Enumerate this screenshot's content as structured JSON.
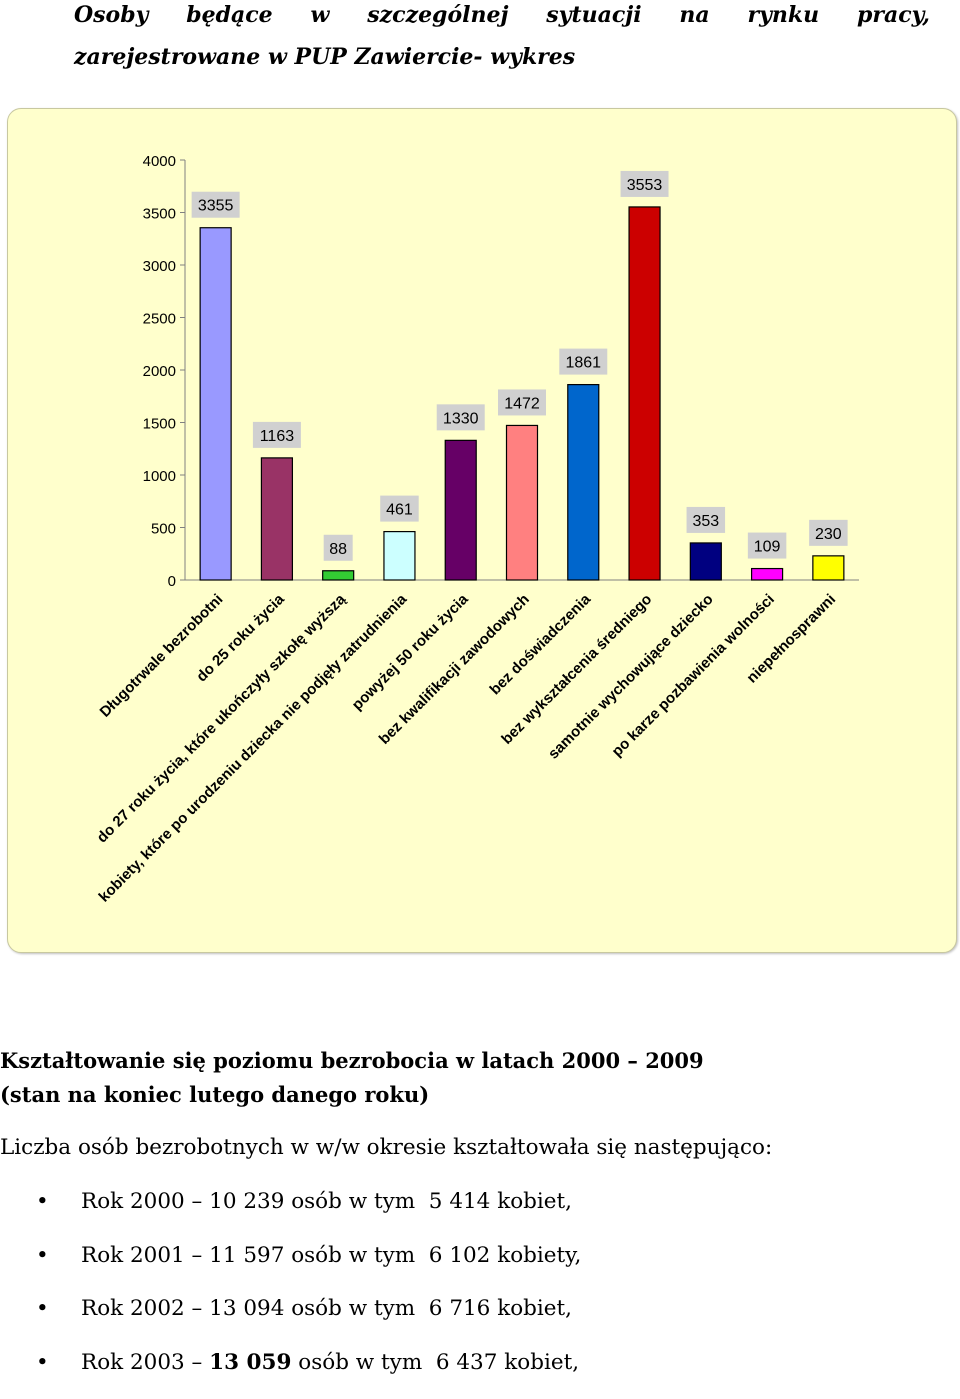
{
  "heading": {
    "line1_words": [
      "Osoby",
      "będące",
      "w",
      "szczególnej",
      "sytuacji",
      "na",
      "rynku",
      "pracy,"
    ],
    "line2": "zarejestrowane w PUP Zawiercie- wykres"
  },
  "chart_data": {
    "type": "bar",
    "categories": [
      "Długotrwale bezrobotni",
      "do 25 roku życia",
      "do 27 roku życia, które ukończyły szkołę wyższą",
      "kobiety, które po urodzeniu dziecka nie podjęły zatrudnienia",
      "powyżej 50 roku życia",
      "bez kwalifikacji zawodowych",
      "bez doświadczenia",
      "bez wykształcenia średniego",
      "samotnie wychowujące dziecko",
      "po karze pozbawienia wolności",
      "niepełnosprawni"
    ],
    "values": [
      3355,
      1163,
      88,
      461,
      1330,
      1472,
      1861,
      3553,
      353,
      109,
      230
    ],
    "value_labels": [
      "3355",
      "1163",
      "88",
      "461",
      "1330",
      "1472",
      "1861",
      "3553",
      "353",
      "109",
      "230"
    ],
    "colors": [
      "#9999FF",
      "#993366",
      "#33CC33",
      "#CCFFFF",
      "#660066",
      "#FF8080",
      "#0066CC",
      "#CC0000",
      "#000080",
      "#FF00FF",
      "#FFFF00"
    ],
    "yticks": [
      "0",
      "500",
      "1000",
      "1500",
      "2000",
      "2500",
      "3000",
      "3500",
      "4000"
    ],
    "ylim": [
      0,
      4000
    ],
    "grid": false,
    "legend": "none",
    "background": "#FFFFCC"
  },
  "section": {
    "title_line1": "Kształtowanie się poziomu bezrobocia w latach 2000 – 2009",
    "title_line2": "(stan na koniec lutego danego roku)",
    "intro": "Liczba osób bezrobotnych w w/w okresie kształtowała się następująco:",
    "bullet": "•",
    "years": [
      {
        "pre": "Rok 2000 – ",
        "bold": "",
        "plain": "10 239",
        "post": " osób w tym  5 414 kobiet,"
      },
      {
        "pre": "Rok 2001 – ",
        "bold": "",
        "plain": "11 597",
        "post": " osób w tym  6 102 kobiety,"
      },
      {
        "pre": "Rok 2002 – ",
        "bold": "",
        "plain": "13 094",
        "post": " osób w tym  6 716 kobiet,"
      },
      {
        "pre": "Rok 2003 – ",
        "bold": "13 059",
        "plain": "",
        "post": " osób w tym  6 437 kobiet,"
      }
    ]
  }
}
